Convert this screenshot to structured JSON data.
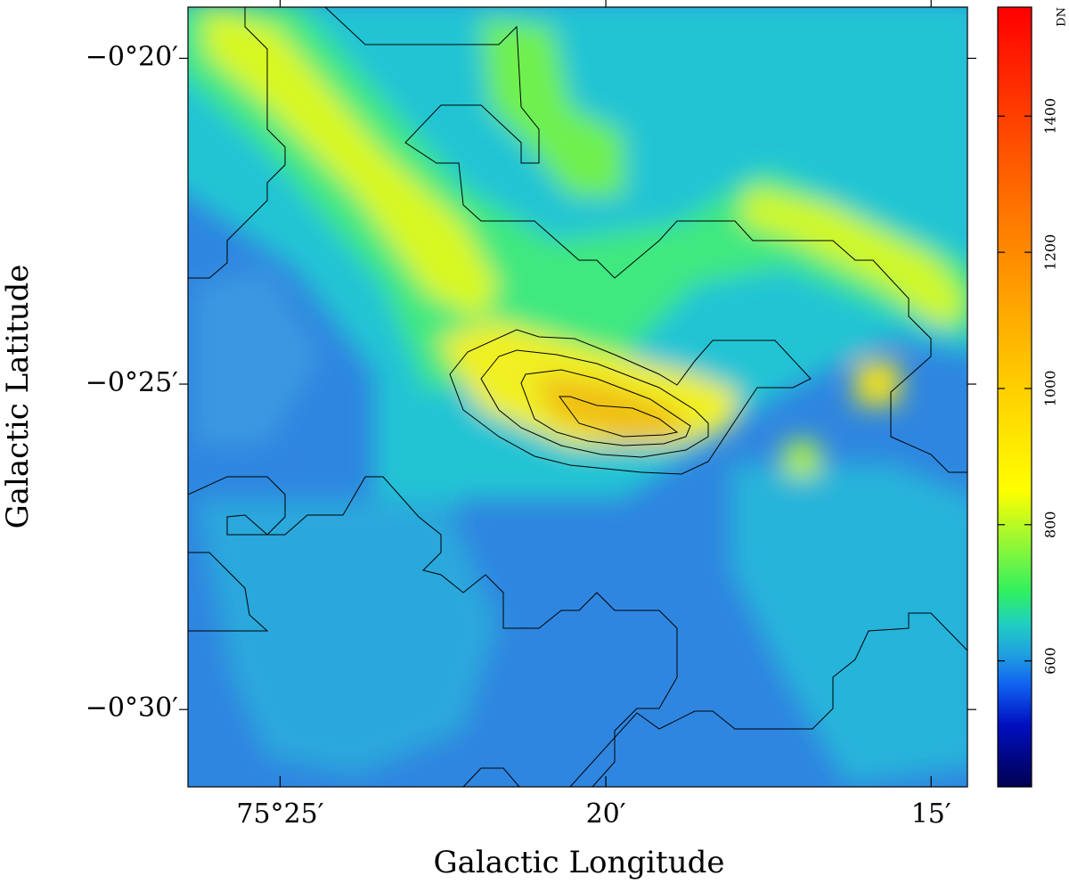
{
  "chart_data": {
    "type": "heatmap",
    "xlabel": "Galactic Longitude",
    "ylabel": "Galactic Latitude",
    "xlim": [
      75.4403,
      75.2407
    ],
    "xticks": [
      {
        "value": 75.4167,
        "label": "75°25′"
      },
      {
        "value": 75.3333,
        "label": "20′"
      },
      {
        "value": 75.25,
        "label": "15′"
      }
    ],
    "ylim": [
      -0.5198,
      -0.3202
    ],
    "yticks": [
      {
        "value": -0.3333,
        "label": "−0°20′"
      },
      {
        "value": -0.4167,
        "label": "−0°25′"
      },
      {
        "value": -0.5,
        "label": "−0°30′"
      }
    ],
    "colorbar": {
      "label": "DN",
      "lim": [
        415,
        1560
      ],
      "ticks": [
        600,
        800,
        1000,
        1200,
        1400
      ]
    }
  }
}
